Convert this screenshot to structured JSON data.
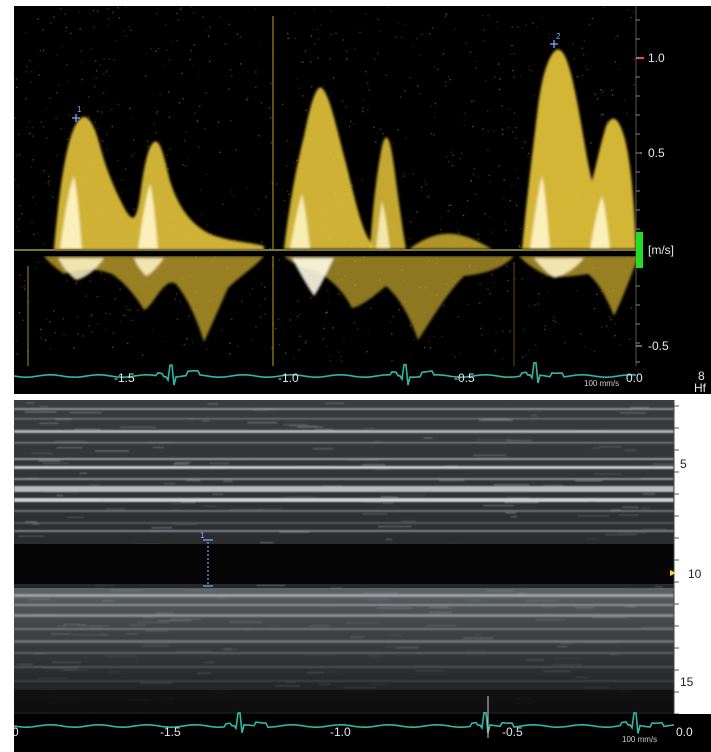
{
  "doppler": {
    "scale_labels": [
      "1.0",
      "0.5",
      "-0.5"
    ],
    "unit_label": "[m/s]",
    "time_labels": [
      "-1.5",
      "-1.0",
      "-0.5",
      "0.0"
    ],
    "sweep_label": "100 mm/s",
    "edge_top": "8",
    "edge_bottom": "Hf",
    "markers": [
      "1",
      "2"
    ],
    "colors": {
      "spectrum": "#f2d34a",
      "ecg": "#2fb8a6",
      "baseline": "#c9c04a",
      "unit_bar": "#22dd22",
      "marker": "#7fa8ff",
      "tick_red": "#ff3b30"
    }
  },
  "mmode": {
    "depth_labels": [
      "5",
      "10",
      "15"
    ],
    "time_labels": [
      "-1.5",
      "-1.0",
      "-0.5",
      "0.0"
    ],
    "sweep_label": "100 mm/s",
    "edge_left": "0",
    "caliper_label": "1",
    "colors": {
      "tissue": "#cfd4d8",
      "ecg": "#2fb8a6",
      "caliper": "#7fa8ff",
      "pointer": "#ffd23a"
    }
  }
}
